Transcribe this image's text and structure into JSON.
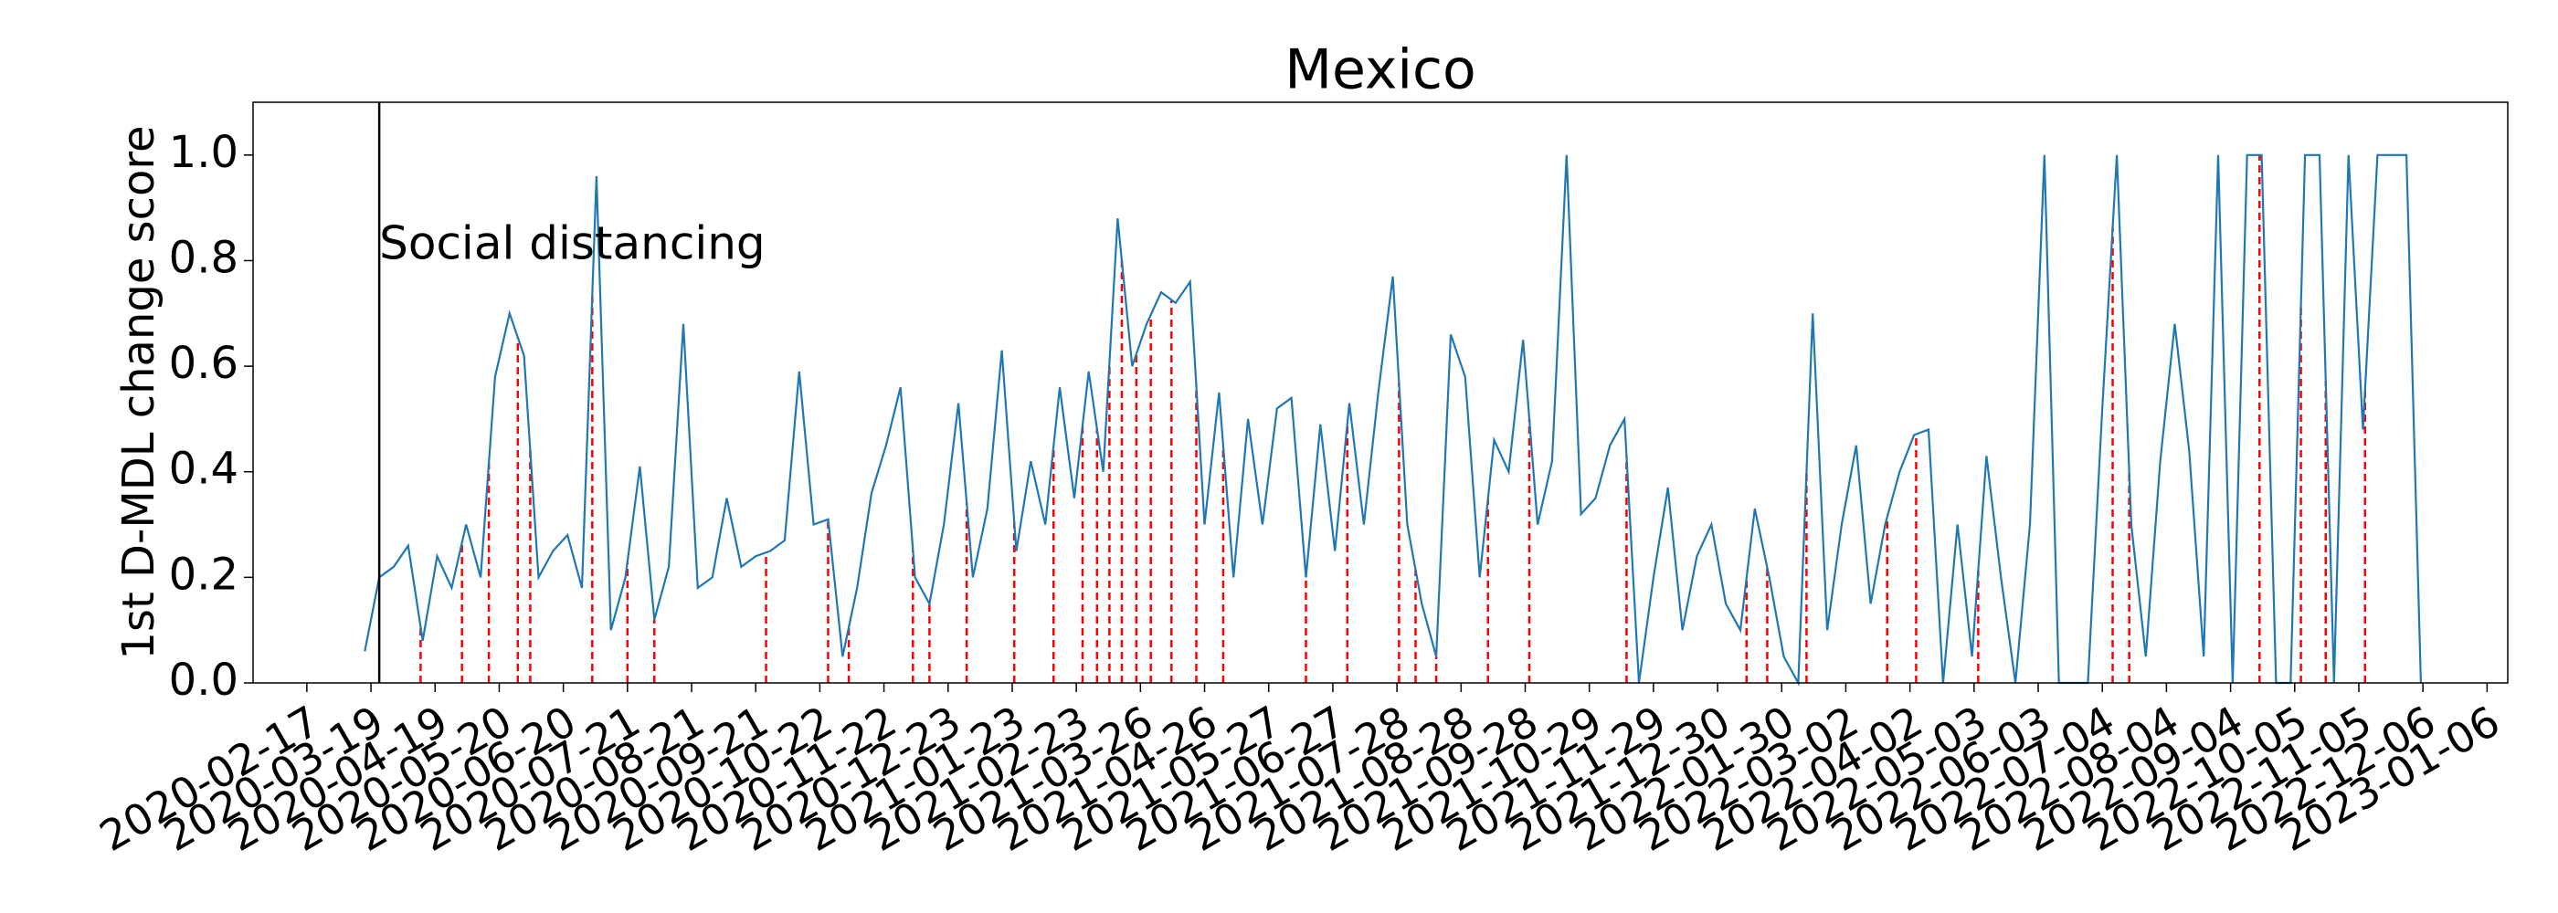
{
  "chart_data": {
    "type": "line",
    "title": "Mexico",
    "y_label": "1st D-MDL change score",
    "color": "#1f77b4",
    "change_color": "#ff0000",
    "xlim": [
      "2020-01-22",
      "2023-01-16"
    ],
    "ylim": [
      0,
      1.1
    ],
    "yticks": [
      {
        "value": 0,
        "label": "0.0"
      },
      {
        "value": 0.2,
        "label": "0.2"
      },
      {
        "value": 0.4,
        "label": "0.4"
      },
      {
        "value": 0.6,
        "label": "0.6"
      },
      {
        "value": 0.8,
        "label": "0.8"
      },
      {
        "value": 1,
        "label": "1.0"
      }
    ],
    "xticks": [
      "2020-02-17",
      "2020-03-19",
      "2020-04-19",
      "2020-05-20",
      "2020-06-20",
      "2020-07-21",
      "2020-08-21",
      "2020-09-21",
      "2020-10-22",
      "2020-11-22",
      "2020-12-23",
      "2021-01-23",
      "2021-02-23",
      "2021-03-26",
      "2021-04-26",
      "2021-05-27",
      "2021-06-27",
      "2021-07-28",
      "2021-08-28",
      "2021-09-28",
      "2021-10-29",
      "2021-11-29",
      "2021-12-30",
      "2022-01-30",
      "2022-03-02",
      "2022-04-02",
      "2022-05-03",
      "2022-06-03",
      "2022-07-04",
      "2022-08-04",
      "2022-09-04",
      "2022-10-05",
      "2022-11-05",
      "2022-12-06",
      "2023-01-06"
    ],
    "annotations": [
      {
        "text": "Social distancing",
        "x": "2020-03-23"
      }
    ],
    "x": [
      "2020-03-16",
      "2020-03-23",
      "2020-03-30",
      "2020-04-06",
      "2020-04-13",
      "2020-04-20",
      "2020-04-27",
      "2020-05-04",
      "2020-05-11",
      "2020-05-18",
      "2020-05-25",
      "2020-06-01",
      "2020-06-08",
      "2020-06-15",
      "2020-06-22",
      "2020-06-29",
      "2020-07-06",
      "2020-07-13",
      "2020-07-20",
      "2020-07-27",
      "2020-08-03",
      "2020-08-10",
      "2020-08-17",
      "2020-08-24",
      "2020-08-31",
      "2020-09-07",
      "2020-09-14",
      "2020-09-21",
      "2020-09-28",
      "2020-10-05",
      "2020-10-12",
      "2020-10-19",
      "2020-10-26",
      "2020-11-02",
      "2020-11-09",
      "2020-11-16",
      "2020-11-23",
      "2020-11-30",
      "2020-12-07",
      "2020-12-14",
      "2020-12-21",
      "2020-12-28",
      "2021-01-04",
      "2021-01-11",
      "2021-01-18",
      "2021-01-25",
      "2021-02-01",
      "2021-02-08",
      "2021-02-15",
      "2021-02-22",
      "2021-03-01",
      "2021-03-08",
      "2021-03-15",
      "2021-03-22",
      "2021-03-29",
      "2021-04-05",
      "2021-04-12",
      "2021-04-19",
      "2021-04-26",
      "2021-05-03",
      "2021-05-10",
      "2021-05-17",
      "2021-05-24",
      "2021-05-31",
      "2021-06-07",
      "2021-06-14",
      "2021-06-21",
      "2021-06-28",
      "2021-07-05",
      "2021-07-12",
      "2021-07-19",
      "2021-07-26",
      "2021-08-02",
      "2021-08-09",
      "2021-08-16",
      "2021-08-23",
      "2021-08-30",
      "2021-09-06",
      "2021-09-13",
      "2021-09-20",
      "2021-09-27",
      "2021-10-04",
      "2021-10-11",
      "2021-10-18",
      "2021-10-25",
      "2021-11-01",
      "2021-11-08",
      "2021-11-15",
      "2021-11-22",
      "2021-11-29",
      "2021-12-06",
      "2021-12-13",
      "2021-12-20",
      "2021-12-27",
      "2022-01-03",
      "2022-01-10",
      "2022-01-17",
      "2022-01-24",
      "2022-01-31",
      "2022-02-07",
      "2022-02-14",
      "2022-02-21",
      "2022-02-28",
      "2022-03-07",
      "2022-03-14",
      "2022-03-21",
      "2022-03-28",
      "2022-04-04",
      "2022-04-11",
      "2022-04-18",
      "2022-04-25",
      "2022-05-02",
      "2022-05-09",
      "2022-05-16",
      "2022-05-23",
      "2022-05-30",
      "2022-06-06",
      "2022-06-13",
      "2022-06-20",
      "2022-06-27",
      "2022-07-04",
      "2022-07-11",
      "2022-07-18",
      "2022-07-25",
      "2022-08-01",
      "2022-08-08",
      "2022-08-15",
      "2022-08-22",
      "2022-08-29",
      "2022-09-05",
      "2022-09-12",
      "2022-09-19",
      "2022-09-26",
      "2022-10-03",
      "2022-10-10",
      "2022-10-17",
      "2022-10-24",
      "2022-10-31",
      "2022-11-07",
      "2022-11-14",
      "2022-11-21",
      "2022-11-28",
      "2022-12-05"
    ],
    "values": [
      0.06,
      0.2,
      0.22,
      0.26,
      0.08,
      0.24,
      0.18,
      0.3,
      0.2,
      0.58,
      0.7,
      0.62,
      0.2,
      0.25,
      0.28,
      0.18,
      0.96,
      0.1,
      0.2,
      0.41,
      0.12,
      0.22,
      0.68,
      0.18,
      0.2,
      0.35,
      0.22,
      0.24,
      0.25,
      0.27,
      0.59,
      0.3,
      0.31,
      0.05,
      0.18,
      0.36,
      0.45,
      0.56,
      0.2,
      0.15,
      0.3,
      0.53,
      0.2,
      0.33,
      0.63,
      0.25,
      0.42,
      0.3,
      0.56,
      0.35,
      0.59,
      0.4,
      0.88,
      0.6,
      0.68,
      0.74,
      0.72,
      0.76,
      0.3,
      0.55,
      0.2,
      0.5,
      0.3,
      0.52,
      0.54,
      0.2,
      0.49,
      0.25,
      0.53,
      0.3,
      0.55,
      0.77,
      0.3,
      0.15,
      0.05,
      0.66,
      0.58,
      0.2,
      0.46,
      0.4,
      0.65,
      0.3,
      0.42,
      1.0,
      0.32,
      0.35,
      0.45,
      0.5,
      0,
      0.2,
      0.37,
      0.1,
      0.24,
      0.3,
      0.15,
      0.1,
      0.33,
      0.2,
      0.05,
      0,
      0.7,
      0.1,
      0.3,
      0.45,
      0.15,
      0.3,
      0.4,
      0.47,
      0.48,
      0,
      0.3,
      0.05,
      0.43,
      0.2,
      0,
      0.3,
      1.0,
      0,
      0,
      0,
      0.52,
      1.0,
      0.3,
      0.05,
      0.42,
      0.68,
      0.44,
      0.05,
      1.0,
      0,
      1.0,
      1.0,
      0,
      0,
      1.0,
      1.0,
      0,
      1.0,
      0.48,
      1.0,
      1.0,
      1.0,
      0
    ],
    "change_points": [
      "2020-04-12",
      "2020-05-02",
      "2020-05-15",
      "2020-05-29",
      "2020-06-04",
      "2020-07-04",
      "2020-07-21",
      "2020-08-03",
      "2020-09-26",
      "2020-10-26",
      "2020-11-05",
      "2020-12-06",
      "2020-12-14",
      "2021-01-01",
      "2021-01-24",
      "2021-02-12",
      "2021-02-26",
      "2021-03-05",
      "2021-03-11",
      "2021-03-17",
      "2021-03-24",
      "2021-03-31",
      "2021-04-10",
      "2021-04-22",
      "2021-05-05",
      "2021-06-14",
      "2021-07-04",
      "2021-07-29",
      "2021-08-06",
      "2021-08-16",
      "2021-09-10",
      "2021-09-30",
      "2021-11-16",
      "2022-01-13",
      "2022-01-23",
      "2022-02-11",
      "2022-03-22",
      "2022-04-05",
      "2022-05-05",
      "2022-06-18",
      "2022-07-09",
      "2022-07-17",
      "2022-09-18",
      "2022-10-08",
      "2022-10-20",
      "2022-11-08"
    ]
  }
}
